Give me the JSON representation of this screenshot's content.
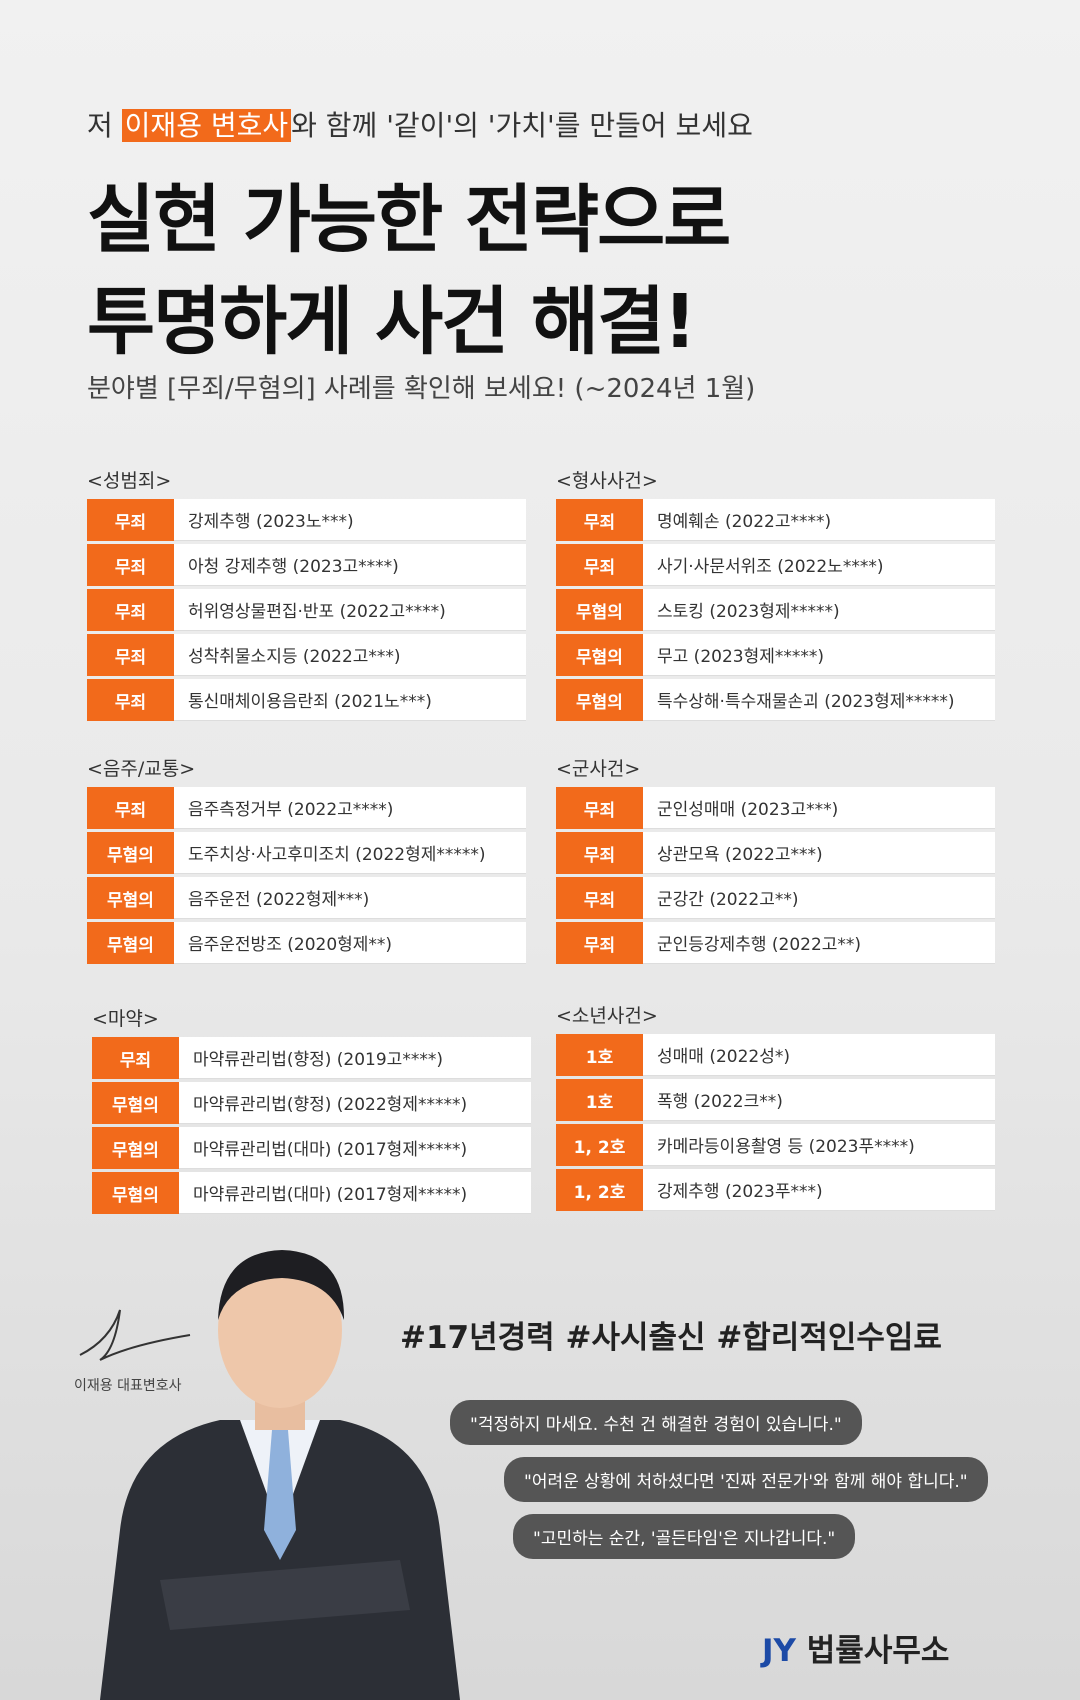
{
  "header": {
    "prefix": "저 ",
    "highlight": "이재용 변호사",
    "suffix": "와 함께 '같이'의 '가치'를 만들어 보세요",
    "title_lines": [
      "실현 가능한 전략으로",
      "투명하게 사건 해결!"
    ],
    "subtitle": "분야별 [무죄/무혐의] 사례를 확인해 보세요! (~2024년 1월)"
  },
  "sections": [
    {
      "title": "<성범죄>",
      "rows": [
        [
          "무죄",
          "강제추행 (2023노***)"
        ],
        [
          "무죄",
          "아청 강제추행 (2023고****)"
        ],
        [
          "무죄",
          "허위영상물편집·반포 (2022고****)"
        ],
        [
          "무죄",
          "성착취물소지등 (2022고***)"
        ],
        [
          "무죄",
          "통신매체이용음란죄 (2021노***)"
        ]
      ]
    },
    {
      "title": "<형사사건>",
      "rows": [
        [
          "무죄",
          "명예훼손 (2022고****)"
        ],
        [
          "무죄",
          "사기·사문서위조 (2022노****)"
        ],
        [
          "무혐의",
          "스토킹 (2023형제*****)"
        ],
        [
          "무혐의",
          "무고 (2023형제*****)"
        ],
        [
          "무혐의",
          "특수상해·특수재물손괴 (2023형제*****)"
        ]
      ]
    },
    {
      "title": "<음주/교통>",
      "rows": [
        [
          "무죄",
          "음주측정거부 (2022고****)"
        ],
        [
          "무혐의",
          "도주치상·사고후미조치 (2022형제*****)"
        ],
        [
          "무혐의",
          "음주운전 (2022형제***)"
        ],
        [
          "무혐의",
          "음주운전방조 (2020형제**)"
        ]
      ]
    },
    {
      "title": "<군사건>",
      "rows": [
        [
          "무죄",
          "군인성매매 (2023고***)"
        ],
        [
          "무죄",
          "상관모욕 (2022고***)"
        ],
        [
          "무죄",
          "군강간 (2022고**)"
        ],
        [
          "무죄",
          "군인등강제추행 (2022고**)"
        ]
      ]
    },
    {
      "title": "<마약>",
      "rows": [
        [
          "무죄",
          "마약류관리법(향정) (2019고****)"
        ],
        [
          "무혐의",
          "마약류관리법(향정) (2022형제*****)"
        ],
        [
          "무혐의",
          "마약류관리법(대마) (2017형제*****)"
        ],
        [
          "무혐의",
          "마약류관리법(대마) (2017형제*****)"
        ]
      ]
    },
    {
      "title": "<소년사건>",
      "rows": [
        [
          "1호",
          "성매매 (2022성*)"
        ],
        [
          "1호",
          "폭행 (2022크**)"
        ],
        [
          "1, 2호",
          "카메라등이용촬영 등 (2023푸****)"
        ],
        [
          "1, 2호",
          "강제추행 (2023푸***)"
        ]
      ]
    }
  ],
  "profile": {
    "hashtags": "#17년경력 #사시출신 #합리적인수임료",
    "quotes": [
      "\"걱정하지 마세요. 수천 건 해결한 경험이 있습니다.\"",
      "\"어려운 상황에 처하셨다면 '진짜 전문가'와 함께 해야 합니다.\"",
      "\"고민하는 순간, '골든타임'은 지나갑니다.\""
    ],
    "signature": "이재용 대표변호사",
    "logo_mark": "JY",
    "logo_text": "법률사무소"
  }
}
